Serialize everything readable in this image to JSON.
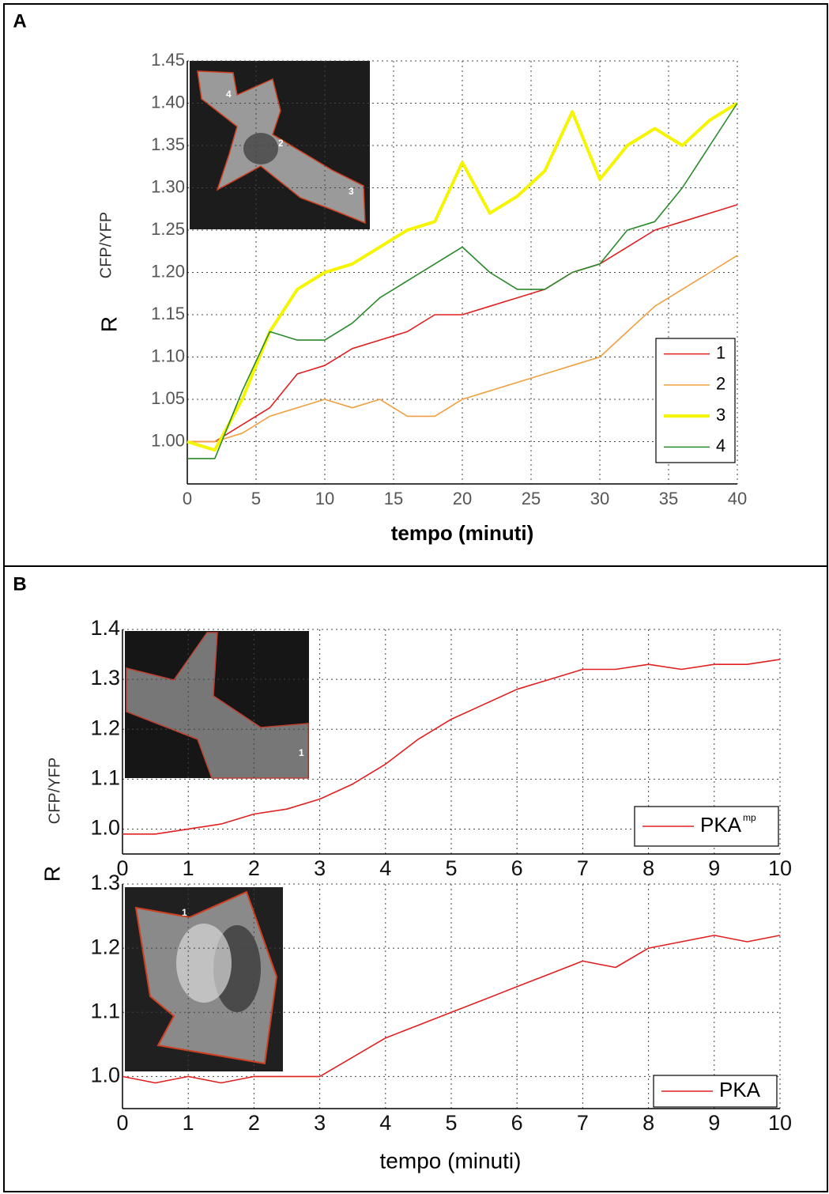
{
  "chart_data": [
    {
      "type": "line",
      "panel": "A",
      "ylabel": "R",
      "ylabel_sub": "CFP/YFP",
      "xlabel": "tempo (minuti)",
      "x": [
        0,
        2,
        4,
        6,
        8,
        10,
        12,
        14,
        16,
        18,
        20,
        22,
        24,
        26,
        28,
        30,
        32,
        34,
        36,
        38,
        40
      ],
      "series": [
        {
          "name": "1",
          "color": "#e02020",
          "values": [
            1.0,
            1.0,
            1.02,
            1.04,
            1.08,
            1.09,
            1.11,
            1.12,
            1.13,
            1.15,
            1.15,
            1.16,
            1.17,
            1.18,
            1.2,
            1.21,
            1.23,
            1.25,
            1.26,
            1.27,
            1.28
          ]
        },
        {
          "name": "2",
          "color": "#f0a040",
          "values": [
            1.0,
            1.0,
            1.01,
            1.03,
            1.04,
            1.05,
            1.04,
            1.05,
            1.03,
            1.03,
            1.05,
            1.06,
            1.07,
            1.08,
            1.09,
            1.1,
            1.13,
            1.16,
            1.18,
            1.2,
            1.22
          ]
        },
        {
          "name": "3",
          "color": "#f5f500",
          "linewidth": 4,
          "values": [
            1.0,
            0.99,
            1.05,
            1.13,
            1.18,
            1.2,
            1.21,
            1.23,
            1.25,
            1.26,
            1.33,
            1.27,
            1.29,
            1.32,
            1.39,
            1.31,
            1.35,
            1.37,
            1.35,
            1.38,
            1.4
          ]
        },
        {
          "name": "4",
          "color": "#2a8a2a",
          "values": [
            0.98,
            0.98,
            1.06,
            1.13,
            1.12,
            1.12,
            1.14,
            1.17,
            1.19,
            1.21,
            1.23,
            1.2,
            1.18,
            1.18,
            1.2,
            1.21,
            1.25,
            1.26,
            1.3,
            1.35,
            1.4
          ]
        }
      ],
      "xlim": [
        0,
        40
      ],
      "xticks": [
        0,
        5,
        10,
        15,
        20,
        25,
        30,
        35,
        40
      ],
      "ylim": [
        0.95,
        1.45
      ],
      "yticks": [
        {
          "value": 1,
          "label": "1.00"
        },
        1.05,
        {
          "value": 1.1,
          "label": "1.10"
        },
        1.15,
        {
          "value": 1.2,
          "label": "1.20"
        },
        1.25,
        {
          "value": 1.3,
          "label": "1.30"
        },
        1.35,
        {
          "value": 1.4,
          "label": "1.40"
        },
        1.45
      ],
      "grid": true,
      "legend": "lower right",
      "inset_labels": [
        "4",
        "2",
        "3"
      ]
    },
    {
      "type": "line",
      "panel": "B",
      "ylabel": "R",
      "ylabel_sub": "CFP/YFP",
      "x": [
        0,
        0.5,
        1,
        1.5,
        2,
        2.5,
        3,
        3.5,
        4,
        4.5,
        5,
        5.5,
        6,
        6.5,
        7,
        7.5,
        8,
        8.5,
        9,
        9.5,
        10
      ],
      "series": [
        {
          "name": "PKA",
          "name_sup": "mp",
          "color": "#e02020",
          "values": [
            0.99,
            0.99,
            1.0,
            1.01,
            1.03,
            1.04,
            1.06,
            1.09,
            1.13,
            1.18,
            1.22,
            1.25,
            1.28,
            1.3,
            1.32,
            1.32,
            1.33,
            1.32,
            1.33,
            1.33,
            1.34
          ]
        }
      ],
      "xlim": [
        0,
        10
      ],
      "xticks": [
        0,
        1,
        2,
        3,
        4,
        5,
        6,
        7,
        8,
        9,
        10
      ],
      "ylim": [
        0.95,
        1.4
      ],
      "yticks": [
        {
          "value": 1,
          "label": "1.0"
        },
        1.1,
        1.2,
        1.3,
        1.4
      ],
      "grid": true,
      "legend": "lower right",
      "inset_labels": [
        "1"
      ]
    },
    {
      "type": "line",
      "xlabel": "tempo (minuti)",
      "x": [
        0,
        0.5,
        1,
        1.5,
        2,
        2.5,
        3,
        3.5,
        4,
        4.5,
        5,
        5.5,
        6,
        6.5,
        7,
        7.5,
        8,
        8.5,
        9,
        9.5,
        10
      ],
      "series": [
        {
          "name": "PKA",
          "color": "#e02020",
          "values": [
            1.0,
            0.99,
            1.0,
            0.99,
            1.0,
            1.0,
            1.0,
            1.03,
            1.06,
            1.08,
            1.1,
            1.12,
            1.14,
            1.16,
            1.18,
            1.17,
            1.2,
            1.21,
            1.22,
            1.21,
            1.22
          ]
        }
      ],
      "xlim": [
        0,
        10
      ],
      "xticks": [
        0,
        1,
        2,
        3,
        4,
        5,
        6,
        7,
        8,
        9,
        10
      ],
      "ylim": [
        0.95,
        1.3
      ],
      "yticks": [
        {
          "value": 1,
          "label": "1.0"
        },
        1.1,
        1.2,
        1.3
      ],
      "grid": true,
      "legend": "lower right",
      "inset_labels": [
        "1"
      ]
    }
  ]
}
